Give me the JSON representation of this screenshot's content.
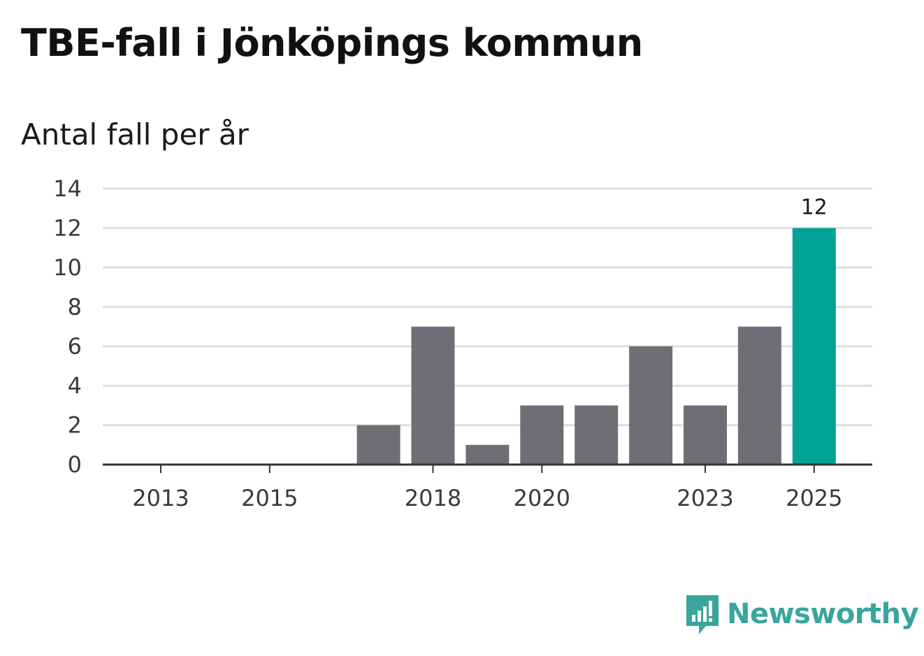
{
  "title": "TBE-fall i Jönköpings kommun",
  "subtitle": "Antal fall per år",
  "brand": {
    "name": "Newsworthy",
    "icon": "newsworthy-logo-icon"
  },
  "colors": {
    "bar": "#6f6e75",
    "highlight": "#00a396",
    "grid": "#dedede",
    "axis": "#333333",
    "brand": "#3aa59a"
  },
  "chart_data": {
    "type": "bar",
    "title": "TBE-fall i Jönköpings kommun",
    "ylabel": "Antal fall per år",
    "xlabel": "",
    "categories": [
      "2013",
      "2014",
      "2015",
      "2016",
      "2017",
      "2018",
      "2019",
      "2020",
      "2021",
      "2022",
      "2023",
      "2024",
      "2025"
    ],
    "values": [
      0,
      0,
      0,
      0,
      2,
      7,
      1,
      3,
      3,
      6,
      3,
      7,
      12
    ],
    "highlight": [
      "2025"
    ],
    "data_labels": [
      {
        "category": "2025",
        "text": "12"
      }
    ],
    "x_tick_labels": [
      "2013",
      "2015",
      "2018",
      "2020",
      "2023",
      "2025"
    ],
    "y_ticks": [
      0,
      2,
      4,
      6,
      8,
      10,
      12,
      14
    ],
    "ylim": [
      0,
      14
    ],
    "grid": true
  }
}
